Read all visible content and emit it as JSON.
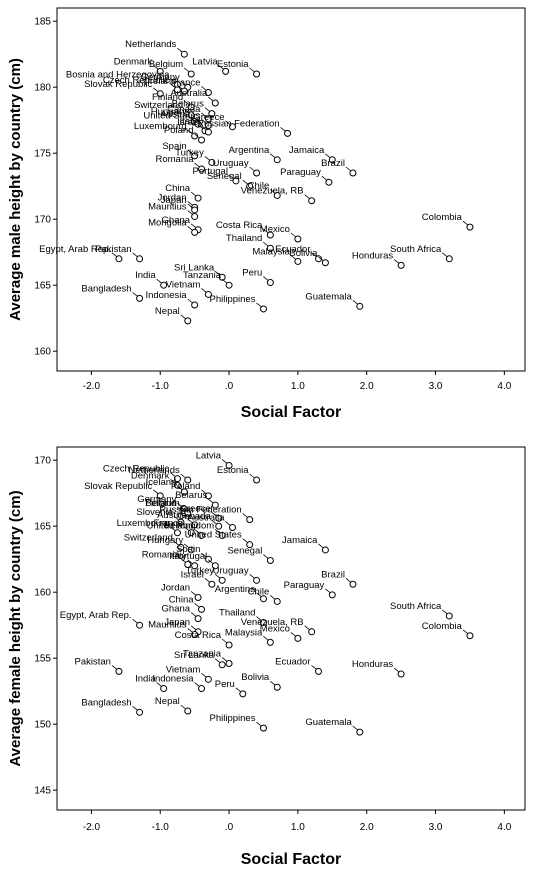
{
  "chart_data": [
    {
      "type": "scatter",
      "xlabel": "Social Factor",
      "ylabel": "Average male height by country (cm)",
      "xlim": [
        -2.5,
        4.3
      ],
      "ylim": [
        158.5,
        186
      ],
      "xticks": [
        "-2.0",
        "-1.0",
        ".0",
        "1.0",
        "2.0",
        "3.0",
        "4.0"
      ],
      "xtick_values": [
        -2,
        -1,
        0,
        1,
        2,
        3,
        4
      ],
      "yticks": [
        "160",
        "165",
        "170",
        "175",
        "180",
        "185"
      ],
      "ytick_values": [
        160,
        165,
        170,
        175,
        180,
        185
      ],
      "points": [
        {
          "label": "Netherlands",
          "x": -0.65,
          "y": 182.5
        },
        {
          "label": "Denmark",
          "x": -1.0,
          "y": 181.2
        },
        {
          "label": "Belgium",
          "x": -0.55,
          "y": 181.0
        },
        {
          "label": "Latvia",
          "x": -0.05,
          "y": 181.2
        },
        {
          "label": "Estonia",
          "x": 0.4,
          "y": 181.0
        },
        {
          "label": "Bosnia and Herzegovina",
          "x": -0.75,
          "y": 180.2
        },
        {
          "label": "Germany",
          "x": -0.6,
          "y": 180.0
        },
        {
          "label": "Czech Republic",
          "x": -0.75,
          "y": 179.8
        },
        {
          "label": "Ireland",
          "x": -0.65,
          "y": 179.7
        },
        {
          "label": "France",
          "x": -0.3,
          "y": 179.6
        },
        {
          "label": "Slovak Republic",
          "x": -1.0,
          "y": 179.5
        },
        {
          "label": "Australia",
          "x": -0.2,
          "y": 178.8
        },
        {
          "label": "Finland",
          "x": -0.55,
          "y": 178.5
        },
        {
          "label": "Belarus",
          "x": -0.25,
          "y": 178.0
        },
        {
          "label": "Switzerland",
          "x": -0.55,
          "y": 177.9
        },
        {
          "label": "Canada",
          "x": -0.3,
          "y": 177.6
        },
        {
          "label": "Hungary",
          "x": -0.5,
          "y": 177.4
        },
        {
          "label": "Austria",
          "x": -0.45,
          "y": 177.2
        },
        {
          "label": "United States",
          "x": -0.3,
          "y": 177.1
        },
        {
          "label": "Italy",
          "x": -0.35,
          "y": 176.7
        },
        {
          "label": "Israel",
          "x": -0.3,
          "y": 176.6
        },
        {
          "label": "Greece",
          "x": 0.05,
          "y": 177.0
        },
        {
          "label": "Russian Federation",
          "x": 0.85,
          "y": 176.5
        },
        {
          "label": "Luxembourg",
          "x": -0.5,
          "y": 176.3
        },
        {
          "label": "Poland",
          "x": -0.4,
          "y": 176.0
        },
        {
          "label": "Spain",
          "x": -0.5,
          "y": 174.8
        },
        {
          "label": "Turkey",
          "x": -0.25,
          "y": 174.3
        },
        {
          "label": "Argentina",
          "x": 0.7,
          "y": 174.5
        },
        {
          "label": "Jamaica",
          "x": 1.5,
          "y": 174.5
        },
        {
          "label": "Brazil",
          "x": 1.8,
          "y": 173.5
        },
        {
          "label": "Romania",
          "x": -0.4,
          "y": 173.8
        },
        {
          "label": "Uruguay",
          "x": 0.4,
          "y": 173.5
        },
        {
          "label": "Portugal",
          "x": 0.1,
          "y": 172.9
        },
        {
          "label": "Paraguay",
          "x": 1.45,
          "y": 172.8
        },
        {
          "label": "Senegal",
          "x": 0.3,
          "y": 172.5
        },
        {
          "label": "Chile",
          "x": 0.7,
          "y": 171.8
        },
        {
          "label": "China",
          "x": -0.45,
          "y": 171.6
        },
        {
          "label": "Jordan",
          "x": -0.5,
          "y": 170.9
        },
        {
          "label": "Venezuela, RB",
          "x": 1.2,
          "y": 171.4
        },
        {
          "label": "Japan",
          "x": -0.5,
          "y": 170.7
        },
        {
          "label": "Mauritius",
          "x": -0.5,
          "y": 170.2
        },
        {
          "label": "Colombia",
          "x": 3.5,
          "y": 169.4
        },
        {
          "label": "Ghana",
          "x": -0.45,
          "y": 169.2
        },
        {
          "label": "Costa Rica",
          "x": 0.6,
          "y": 168.8
        },
        {
          "label": "Mongolia",
          "x": -0.5,
          "y": 169.0
        },
        {
          "label": "Thailand",
          "x": 0.6,
          "y": 167.8
        },
        {
          "label": "Mexico",
          "x": 1.0,
          "y": 168.5
        },
        {
          "label": "Ecuador",
          "x": 1.3,
          "y": 167.0
        },
        {
          "label": "South Africa",
          "x": 3.2,
          "y": 167.0
        },
        {
          "label": "Egypt, Arab Rep.",
          "x": -1.6,
          "y": 167.0
        },
        {
          "label": "Malaysia",
          "x": 1.0,
          "y": 166.8
        },
        {
          "label": "Bolivia",
          "x": 1.4,
          "y": 166.7
        },
        {
          "label": "Honduras",
          "x": 2.5,
          "y": 166.5
        },
        {
          "label": "Pakistan",
          "x": -1.3,
          "y": 167.0
        },
        {
          "label": "Sri Lanka",
          "x": -0.1,
          "y": 165.6
        },
        {
          "label": "India",
          "x": -0.95,
          "y": 165.0
        },
        {
          "label": "Peru",
          "x": 0.6,
          "y": 165.2
        },
        {
          "label": "Tanzania",
          "x": 0.0,
          "y": 165.0
        },
        {
          "label": "Bangladesh",
          "x": -1.3,
          "y": 164.0
        },
        {
          "label": "Indonesia",
          "x": -0.5,
          "y": 163.5
        },
        {
          "label": "Vietnam",
          "x": -0.3,
          "y": 164.3
        },
        {
          "label": "Guatemala",
          "x": 1.9,
          "y": 163.4
        },
        {
          "label": "Philippines",
          "x": 0.5,
          "y": 163.2
        },
        {
          "label": "Nepal",
          "x": -0.6,
          "y": 162.3
        }
      ]
    },
    {
      "type": "scatter",
      "xlabel": "Social Factor",
      "ylabel": "Average female height by country (cm)",
      "xlim": [
        -2.5,
        4.3
      ],
      "ylim": [
        143.5,
        171
      ],
      "xticks": [
        "-2.0",
        "-1.0",
        ".0",
        "1.0",
        "2.0",
        "3.0",
        "4.0"
      ],
      "xtick_values": [
        -2,
        -1,
        0,
        1,
        2,
        3,
        4
      ],
      "yticks": [
        "145",
        "150",
        "155",
        "160",
        "165",
        "170"
      ],
      "ytick_values": [
        145,
        150,
        155,
        160,
        165,
        170
      ],
      "points": [
        {
          "label": "Latvia",
          "x": 0.0,
          "y": 169.6
        },
        {
          "label": "Estonia",
          "x": 0.4,
          "y": 168.5
        },
        {
          "label": "Czech Republic",
          "x": -0.75,
          "y": 168.6
        },
        {
          "label": "Netherlands",
          "x": -0.6,
          "y": 168.5
        },
        {
          "label": "Denmark",
          "x": -0.75,
          "y": 168.1
        },
        {
          "label": "Iceland",
          "x": -0.65,
          "y": 167.6
        },
        {
          "label": "Poland",
          "x": -0.3,
          "y": 167.3
        },
        {
          "label": "Slovak Republic",
          "x": -1.0,
          "y": 167.3
        },
        {
          "label": "Belarus",
          "x": -0.2,
          "y": 166.6
        },
        {
          "label": "Germany",
          "x": -0.65,
          "y": 166.3
        },
        {
          "label": "Finland",
          "x": -0.65,
          "y": 166.0
        },
        {
          "label": "Belgium",
          "x": -0.6,
          "y": 166.0
        },
        {
          "label": "Greece",
          "x": -0.15,
          "y": 165.6
        },
        {
          "label": "Russian Federation",
          "x": 0.3,
          "y": 165.5
        },
        {
          "label": "Slovenia",
          "x": -0.7,
          "y": 165.3
        },
        {
          "label": "Austria",
          "x": -0.5,
          "y": 165.1
        },
        {
          "label": "Canada",
          "x": -0.15,
          "y": 165.0
        },
        {
          "label": "Australia",
          "x": 0.05,
          "y": 164.9
        },
        {
          "label": "Luxembourg",
          "x": -0.75,
          "y": 164.5
        },
        {
          "label": "France",
          "x": -0.55,
          "y": 164.5
        },
        {
          "label": "Ireland",
          "x": -0.4,
          "y": 164.3
        },
        {
          "label": "United Kingdom",
          "x": -0.1,
          "y": 164.3
        },
        {
          "label": "Jamaica",
          "x": 1.4,
          "y": 163.2
        },
        {
          "label": "Switzerland",
          "x": -0.7,
          "y": 163.4
        },
        {
          "label": "Hungary",
          "x": -0.55,
          "y": 163.2
        },
        {
          "label": "United States",
          "x": 0.3,
          "y": 163.6
        },
        {
          "label": "Spain",
          "x": -0.3,
          "y": 162.5
        },
        {
          "label": "Senegal",
          "x": 0.6,
          "y": 162.4
        },
        {
          "label": "Romania",
          "x": -0.6,
          "y": 162.1
        },
        {
          "label": "Italy",
          "x": -0.5,
          "y": 162.0
        },
        {
          "label": "Portugal",
          "x": -0.2,
          "y": 162.0
        },
        {
          "label": "Turkey",
          "x": -0.1,
          "y": 160.9
        },
        {
          "label": "Uruguay",
          "x": 0.4,
          "y": 160.9
        },
        {
          "label": "Israel",
          "x": -0.25,
          "y": 160.6
        },
        {
          "label": "Brazil",
          "x": 1.8,
          "y": 160.6
        },
        {
          "label": "Argentina",
          "x": 0.5,
          "y": 159.5
        },
        {
          "label": "Chile",
          "x": 0.7,
          "y": 159.3
        },
        {
          "label": "Paraguay",
          "x": 1.5,
          "y": 159.8
        },
        {
          "label": "Jordan",
          "x": -0.45,
          "y": 159.6
        },
        {
          "label": "China",
          "x": -0.4,
          "y": 158.7
        },
        {
          "label": "South Africa",
          "x": 3.2,
          "y": 158.2
        },
        {
          "label": "Egypt, Arab Rep.",
          "x": -1.3,
          "y": 157.5
        },
        {
          "label": "Ghana",
          "x": -0.45,
          "y": 158.0
        },
        {
          "label": "Thailand",
          "x": 0.5,
          "y": 157.7
        },
        {
          "label": "Japan",
          "x": -0.45,
          "y": 157.0
        },
        {
          "label": "Venezuela, RB",
          "x": 1.2,
          "y": 157.0
        },
        {
          "label": "Colombia",
          "x": 3.5,
          "y": 156.7
        },
        {
          "label": "Mauritius",
          "x": -0.5,
          "y": 156.8
        },
        {
          "label": "Costa Rica",
          "x": 0.0,
          "y": 156.0
        },
        {
          "label": "Mexico",
          "x": 1.0,
          "y": 156.5
        },
        {
          "label": "Pakistan",
          "x": -1.6,
          "y": 154.0
        },
        {
          "label": "Malaysia",
          "x": 0.6,
          "y": 156.2
        },
        {
          "label": "Tanzania",
          "x": 0.0,
          "y": 154.6
        },
        {
          "label": "Sri Lanka",
          "x": -0.1,
          "y": 154.5
        },
        {
          "label": "Ecuador",
          "x": 1.3,
          "y": 154.0
        },
        {
          "label": "Honduras",
          "x": 2.5,
          "y": 153.8
        },
        {
          "label": "India",
          "x": -0.95,
          "y": 152.7
        },
        {
          "label": "Vietnam",
          "x": -0.3,
          "y": 153.4
        },
        {
          "label": "Bolivia",
          "x": 0.7,
          "y": 152.8
        },
        {
          "label": "Indonesia",
          "x": -0.4,
          "y": 152.7
        },
        {
          "label": "Peru",
          "x": 0.2,
          "y": 152.3
        },
        {
          "label": "Bangladesh",
          "x": -1.3,
          "y": 150.9
        },
        {
          "label": "Nepal",
          "x": -0.6,
          "y": 151.0
        },
        {
          "label": "Philippines",
          "x": 0.5,
          "y": 149.7
        },
        {
          "label": "Guatemala",
          "x": 1.9,
          "y": 149.4
        }
      ]
    }
  ]
}
